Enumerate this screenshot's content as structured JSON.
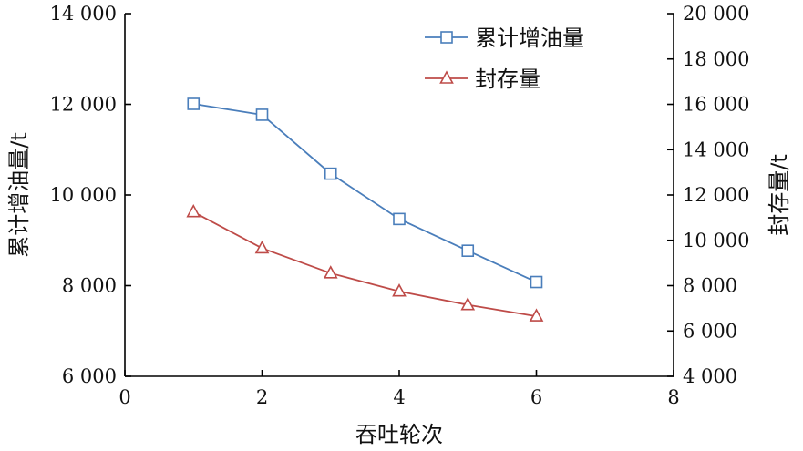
{
  "chart_data": {
    "type": "line",
    "xlabel": "吞吐轮次",
    "ylabel": "累计增油量/t",
    "y2label": "封存量/t",
    "xlim": [
      0,
      8
    ],
    "ylim": [
      6000,
      14000
    ],
    "y2lim": [
      4000,
      20000
    ],
    "x_ticks": [
      0,
      2,
      4,
      6,
      8
    ],
    "x_tick_labels": [
      "0",
      "2",
      "4",
      "6",
      "8"
    ],
    "y_ticks": [
      6000,
      8000,
      10000,
      12000,
      14000
    ],
    "y_tick_labels": [
      "6 000",
      "8 000",
      "10 000",
      "12 000",
      "14 000"
    ],
    "y2_ticks": [
      4000,
      6000,
      8000,
      10000,
      12000,
      14000,
      16000,
      18000,
      20000
    ],
    "y2_tick_labels": [
      "4 000",
      "6 000",
      "8 000",
      "10 000",
      "12 000",
      "14 000",
      "16 000",
      "18 000",
      "20 000"
    ],
    "grid": false,
    "legend_position": "top-right",
    "series": [
      {
        "name": "累计增油量",
        "axis": "left",
        "color": "#4a7ebb",
        "marker": "square",
        "x": [
          1,
          2,
          3,
          4,
          5,
          6
        ],
        "values": [
          12010,
          11770,
          10470,
          9470,
          8770,
          8080
        ]
      },
      {
        "name": "封存量",
        "axis": "right",
        "color": "#be4b48",
        "marker": "triangle",
        "x": [
          1,
          2,
          3,
          4,
          5,
          6
        ],
        "values": [
          11250,
          9650,
          8550,
          7750,
          7150,
          6650
        ]
      }
    ]
  }
}
